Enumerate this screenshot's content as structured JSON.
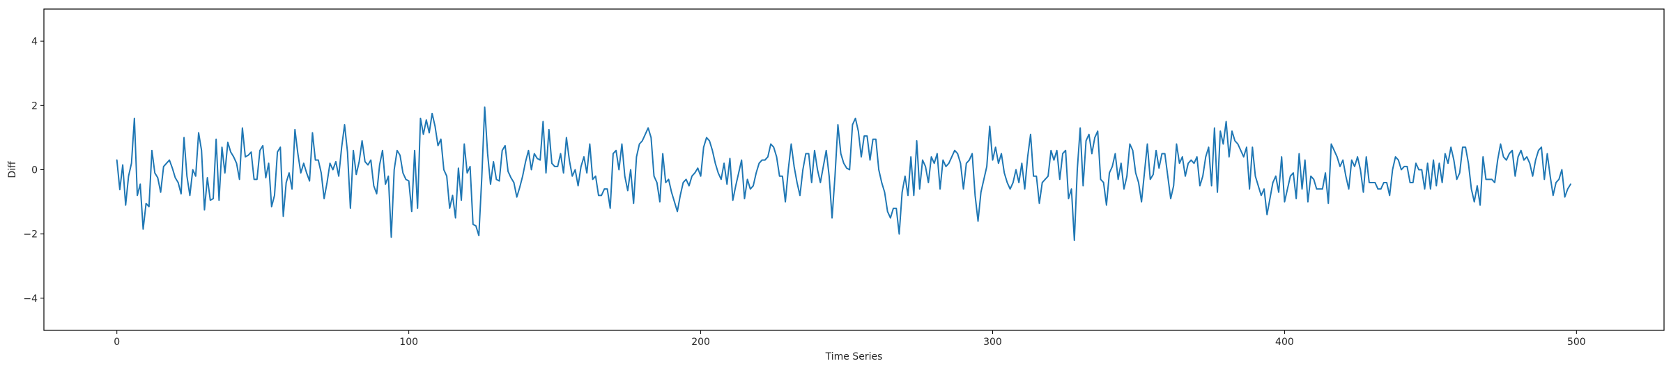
{
  "chart_data": {
    "type": "line",
    "title": "",
    "xlabel": "Time Series",
    "ylabel": "Diff",
    "xlim": [
      -25,
      530
    ],
    "ylim": [
      -5,
      5
    ],
    "x_ticks": [
      0,
      100,
      200,
      300,
      400,
      500
    ],
    "y_ticks": [
      -4,
      -2,
      0,
      2,
      4
    ],
    "grid": false,
    "legend": "none",
    "colors": {
      "line": "#1f77b4",
      "axes": "#000000",
      "text": "#262626"
    },
    "series": [
      {
        "x_start": 0,
        "x_step": 1,
        "values": [
          0.3,
          -0.62,
          0.15,
          -1.1,
          -0.2,
          0.2,
          1.6,
          -0.8,
          -0.45,
          -1.85,
          -1.05,
          -1.15,
          0.6,
          -0.1,
          -0.25,
          -0.7,
          0.1,
          0.2,
          0.3,
          0.05,
          -0.25,
          -0.4,
          -0.75,
          1.0,
          -0.2,
          -0.8,
          0.0,
          -0.2,
          1.15,
          0.6,
          -1.25,
          -0.25,
          -0.95,
          -0.9,
          0.95,
          -0.95,
          0.7,
          -0.1,
          0.85,
          0.55,
          0.4,
          0.2,
          -0.3,
          1.3,
          0.4,
          0.45,
          0.55,
          -0.3,
          -0.3,
          0.6,
          0.75,
          -0.25,
          0.2,
          -1.15,
          -0.8,
          0.55,
          0.7,
          -1.45,
          -0.4,
          -0.1,
          -0.6,
          1.25,
          0.5,
          -0.1,
          0.2,
          -0.1,
          -0.35,
          1.15,
          0.3,
          0.3,
          -0.1,
          -0.9,
          -0.4,
          0.2,
          0.0,
          0.25,
          -0.2,
          0.7,
          1.4,
          0.55,
          -1.2,
          0.6,
          -0.15,
          0.25,
          0.9,
          0.25,
          0.15,
          0.3,
          -0.5,
          -0.75,
          0.15,
          0.6,
          -0.45,
          -0.2,
          -2.1,
          0.0,
          0.6,
          0.45,
          -0.1,
          -0.3,
          -0.35,
          -1.3,
          0.6,
          -1.2,
          1.6,
          1.1,
          1.55,
          1.15,
          1.75,
          1.35,
          0.75,
          0.95,
          0.0,
          -0.2,
          -1.2,
          -0.8,
          -1.5,
          0.05,
          -0.95,
          0.8,
          -0.1,
          0.1,
          -1.7,
          -1.75,
          -2.05,
          -0.25,
          1.95,
          0.5,
          -0.45,
          0.25,
          -0.3,
          -0.35,
          0.6,
          0.75,
          -0.05,
          -0.25,
          -0.4,
          -0.85,
          -0.55,
          -0.2,
          0.25,
          0.6,
          0.0,
          0.5,
          0.35,
          0.3,
          1.5,
          -0.1,
          1.25,
          0.2,
          0.1,
          0.1,
          0.5,
          -0.1,
          1.0,
          0.3,
          -0.2,
          0.0,
          -0.5,
          0.1,
          0.4,
          -0.1,
          0.8,
          -0.3,
          -0.2,
          -0.8,
          -0.8,
          -0.6,
          -0.6,
          -1.2,
          0.5,
          0.6,
          0.0,
          0.8,
          -0.2,
          -0.65,
          0.0,
          -1.05,
          0.4,
          0.8,
          0.9,
          1.1,
          1.3,
          1.0,
          -0.2,
          -0.4,
          -1.0,
          0.5,
          -0.4,
          -0.3,
          -0.7,
          -1.0,
          -1.3,
          -0.8,
          -0.4,
          -0.3,
          -0.5,
          -0.2,
          -0.1,
          0.05,
          -0.2,
          0.7,
          1.0,
          0.9,
          0.6,
          0.2,
          -0.1,
          -0.3,
          0.2,
          -0.45,
          0.35,
          -0.95,
          -0.5,
          -0.1,
          0.3,
          -0.9,
          -0.3,
          -0.6,
          -0.5,
          -0.1,
          0.2,
          0.3,
          0.3,
          0.4,
          0.8,
          0.7,
          0.4,
          -0.2,
          -0.2,
          -1.0,
          0.0,
          0.8,
          0.1,
          -0.4,
          -0.8,
          0.0,
          0.5,
          0.5,
          -0.4,
          0.6,
          0.0,
          -0.4,
          0.1,
          0.6,
          -0.2,
          -1.5,
          -0.2,
          1.4,
          0.5,
          0.2,
          0.05,
          0.0,
          1.4,
          1.6,
          1.2,
          0.4,
          1.05,
          1.05,
          0.3,
          0.95,
          0.95,
          0.0,
          -0.4,
          -0.7,
          -1.3,
          -1.5,
          -1.2,
          -1.2,
          -2.0,
          -0.7,
          -0.2,
          -0.8,
          0.4,
          -0.8,
          0.9,
          -0.6,
          0.3,
          0.1,
          -0.4,
          0.4,
          0.2,
          0.5,
          -0.6,
          0.3,
          0.1,
          0.2,
          0.4,
          0.6,
          0.5,
          0.2,
          -0.6,
          0.2,
          0.3,
          0.5,
          -0.8,
          -1.6,
          -0.7,
          -0.3,
          0.1,
          1.35,
          0.3,
          0.7,
          0.2,
          0.5,
          -0.1,
          -0.4,
          -0.6,
          -0.4,
          0.0,
          -0.4,
          0.2,
          -0.6,
          0.4,
          1.1,
          -0.2,
          -0.2,
          -1.05,
          -0.4,
          -0.3,
          -0.2,
          0.6,
          0.3,
          0.6,
          -0.3,
          0.5,
          0.6,
          -0.9,
          -0.6,
          -2.2,
          0.0,
          1.3,
          -0.5,
          0.9,
          1.1,
          0.5,
          1.0,
          1.2,
          -0.3,
          -0.4,
          -1.1,
          -0.1,
          0.1,
          0.5,
          -0.3,
          0.2,
          -0.6,
          -0.2,
          0.8,
          0.6,
          -0.1,
          -0.4,
          -1.0,
          -0.1,
          0.8,
          -0.3,
          -0.15,
          0.6,
          0.05,
          0.5,
          0.5,
          -0.2,
          -0.9,
          -0.5,
          0.8,
          0.2,
          0.4,
          -0.2,
          0.2,
          0.3,
          0.2,
          0.4,
          -0.5,
          -0.2,
          0.4,
          0.7,
          -0.5,
          1.3,
          -0.7,
          1.2,
          0.8,
          1.5,
          0.4,
          1.2,
          0.9,
          0.8,
          0.6,
          0.4,
          0.7,
          -0.6,
          0.7,
          -0.2,
          -0.5,
          -0.8,
          -0.6,
          -1.4,
          -0.9,
          -0.4,
          -0.2,
          -0.7,
          0.4,
          -1.0,
          -0.6,
          -0.2,
          -0.1,
          -0.9,
          0.5,
          -0.6,
          0.3,
          -1.0,
          -0.2,
          -0.3,
          -0.6,
          -0.6,
          -0.6,
          -0.1,
          -1.05,
          0.8,
          0.6,
          0.4,
          0.1,
          0.3,
          -0.2,
          -0.6,
          0.3,
          0.1,
          0.4,
          0.0,
          -0.7,
          0.4,
          -0.4,
          -0.4,
          -0.4,
          -0.6,
          -0.6,
          -0.4,
          -0.4,
          -0.8,
          0.0,
          0.4,
          0.3,
          0.0,
          0.1,
          0.1,
          -0.4,
          -0.4,
          0.2,
          0.0,
          0.0,
          -0.6,
          0.2,
          -0.6,
          0.3,
          -0.5,
          0.2,
          -0.4,
          0.5,
          0.2,
          0.7,
          0.3,
          -0.3,
          -0.1,
          0.7,
          0.7,
          0.2,
          -0.6,
          -1.0,
          -0.5,
          -1.1,
          0.4,
          -0.3,
          -0.3,
          -0.3,
          -0.4,
          0.3,
          0.8,
          0.4,
          0.3,
          0.5,
          0.6,
          -0.2,
          0.4,
          0.6,
          0.3,
          0.4,
          0.2,
          -0.2,
          0.3,
          0.6,
          0.7,
          -0.3,
          0.5,
          -0.2,
          -0.8,
          -0.4,
          -0.3,
          0.0,
          -0.85,
          -0.6,
          -0.45
        ]
      }
    ]
  }
}
